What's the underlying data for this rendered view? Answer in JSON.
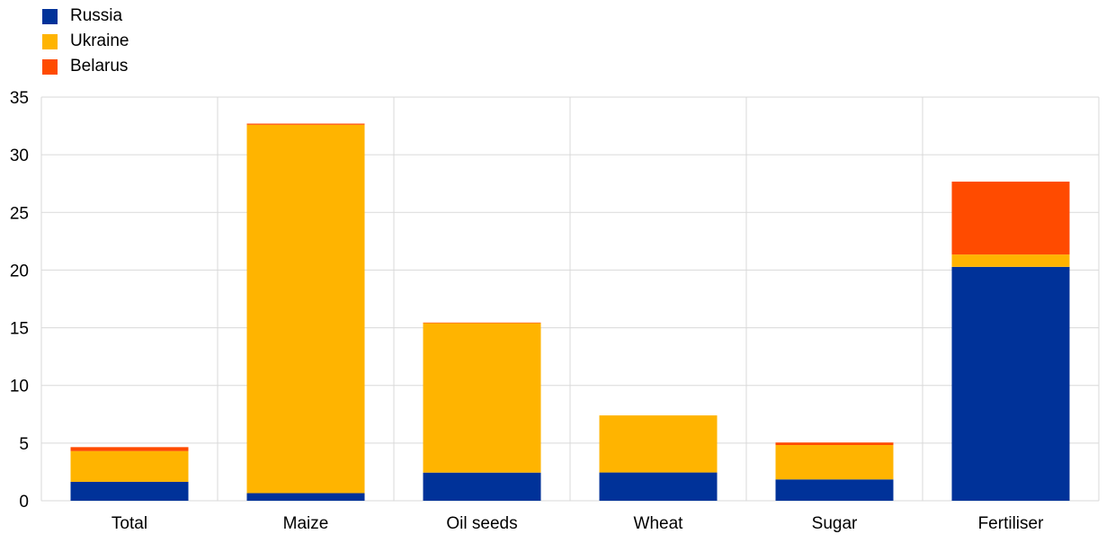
{
  "chart_data": {
    "type": "bar",
    "stacked": true,
    "categories": [
      "Total",
      "Maize",
      "Oil seeds",
      "Wheat",
      "Sugar",
      "Fertiliser"
    ],
    "series": [
      {
        "name": "Russia",
        "color": "#003299",
        "values": [
          1.64,
          0.66,
          2.44,
          2.45,
          1.85,
          20.28
        ]
      },
      {
        "name": "Ukraine",
        "color": "#FFB400",
        "values": [
          2.67,
          31.94,
          12.96,
          4.95,
          2.98,
          1.07
        ]
      },
      {
        "name": "Belarus",
        "color": "#FF4B00",
        "values": [
          0.34,
          0.1,
          0.05,
          0.0,
          0.22,
          6.32
        ]
      }
    ],
    "ylim": [
      0,
      35
    ],
    "yticks": [
      0,
      5,
      10,
      15,
      20,
      25,
      30,
      35
    ],
    "grid": true,
    "legend_position": "top-left"
  }
}
